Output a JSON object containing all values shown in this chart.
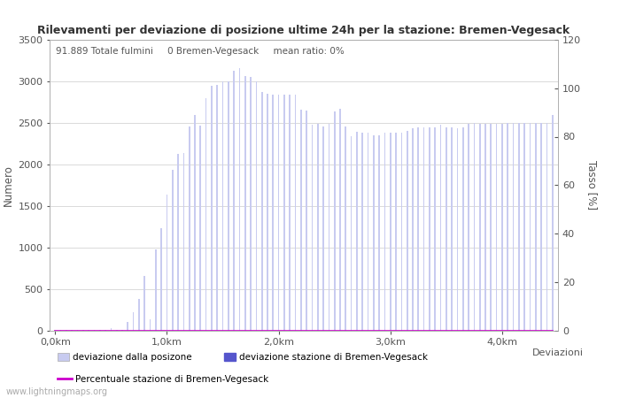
{
  "title": "Rilevamenti per deviazione di posizione ultime 24h per la stazione: Bremen-Vegesack",
  "info_text": "91.889 Totale fulmini     0 Bremen-Vegesack     mean ratio: 0%",
  "ylabel_left": "Numero",
  "ylabel_right": "Tasso [%]",
  "xlabel": "Deviazioni",
  "xtick_labels": [
    "0,0km",
    "1,0km",
    "2,0km",
    "3,0km",
    "4,0km"
  ],
  "xtick_positions": [
    0,
    20,
    40,
    60,
    80
  ],
  "ylim_left": [
    0,
    3500
  ],
  "ylim_right": [
    0,
    120
  ],
  "yticks_left": [
    0,
    500,
    1000,
    1500,
    2000,
    2500,
    3000,
    3500
  ],
  "yticks_right": [
    0,
    20,
    40,
    60,
    80,
    100,
    120
  ],
  "bar_color_light": "#c8cbf0",
  "bar_color_dark": "#5555cc",
  "line_color": "#cc00cc",
  "bg_color": "#ffffff",
  "grid_color": "#cccccc",
  "watermark": "www.lightningmaps.org",
  "bar_values": [
    3,
    3,
    3,
    3,
    3,
    3,
    3,
    3,
    3,
    3,
    30,
    3,
    3,
    100,
    220,
    380,
    650,
    130,
    970,
    1230,
    1640,
    1930,
    2130,
    2140,
    2460,
    2590,
    2470,
    2800,
    2950,
    2960,
    3000,
    3000,
    3130,
    3160,
    3060,
    3050,
    3000,
    2870,
    2850,
    2840,
    2840,
    2840,
    2840,
    2840,
    2660,
    2650,
    2480,
    2490,
    2460,
    2490,
    2640,
    2670,
    2460,
    2340,
    2390,
    2380,
    2380,
    2350,
    2350,
    2380,
    2380,
    2380,
    2380,
    2400,
    2430,
    2440,
    2440,
    2440,
    2440,
    2480,
    2440,
    2440,
    2430,
    2440,
    2490,
    2500,
    2490,
    2490,
    2490,
    2490,
    2490,
    2500,
    2500,
    2500,
    2500,
    2500,
    2500,
    2500,
    2500,
    2590
  ],
  "station_values": [
    0,
    0,
    0,
    0,
    0,
    0,
    0,
    0,
    0,
    0,
    0,
    0,
    0,
    0,
    0,
    0,
    0,
    0,
    0,
    0,
    0,
    0,
    0,
    0,
    0,
    0,
    0,
    0,
    0,
    0,
    0,
    0,
    0,
    0,
    0,
    0,
    0,
    0,
    0,
    0,
    0,
    0,
    0,
    0,
    0,
    0,
    0,
    0,
    0,
    0,
    0,
    0,
    0,
    0,
    0,
    0,
    0,
    0,
    0,
    0,
    0,
    0,
    0,
    0,
    0,
    0,
    0,
    0,
    0,
    0,
    0,
    0,
    0,
    0,
    0,
    0,
    0,
    0,
    0,
    0,
    0,
    0,
    0,
    0,
    0,
    0,
    0,
    0,
    0,
    0
  ],
  "ratio_values": [
    0,
    0,
    0,
    0,
    0,
    0,
    0,
    0,
    0,
    0,
    0,
    0,
    0,
    0,
    0,
    0,
    0,
    0,
    0,
    0,
    0,
    0,
    0,
    0,
    0,
    0,
    0,
    0,
    0,
    0,
    0,
    0,
    0,
    0,
    0,
    0,
    0,
    0,
    0,
    0,
    0,
    0,
    0,
    0,
    0,
    0,
    0,
    0,
    0,
    0,
    0,
    0,
    0,
    0,
    0,
    0,
    0,
    0,
    0,
    0,
    0,
    0,
    0,
    0,
    0,
    0,
    0,
    0,
    0,
    0,
    0,
    0,
    0,
    0,
    0,
    0,
    0,
    0,
    0,
    0,
    0,
    0,
    0,
    0,
    0,
    0,
    0,
    0,
    0,
    0
  ],
  "legend1_label1": "deviazione dalla posizone",
  "legend1_label2": "deviazione stazione di Bremen-Vegesack",
  "legend2_label": "Percentuale stazione di Bremen-Vegesack"
}
